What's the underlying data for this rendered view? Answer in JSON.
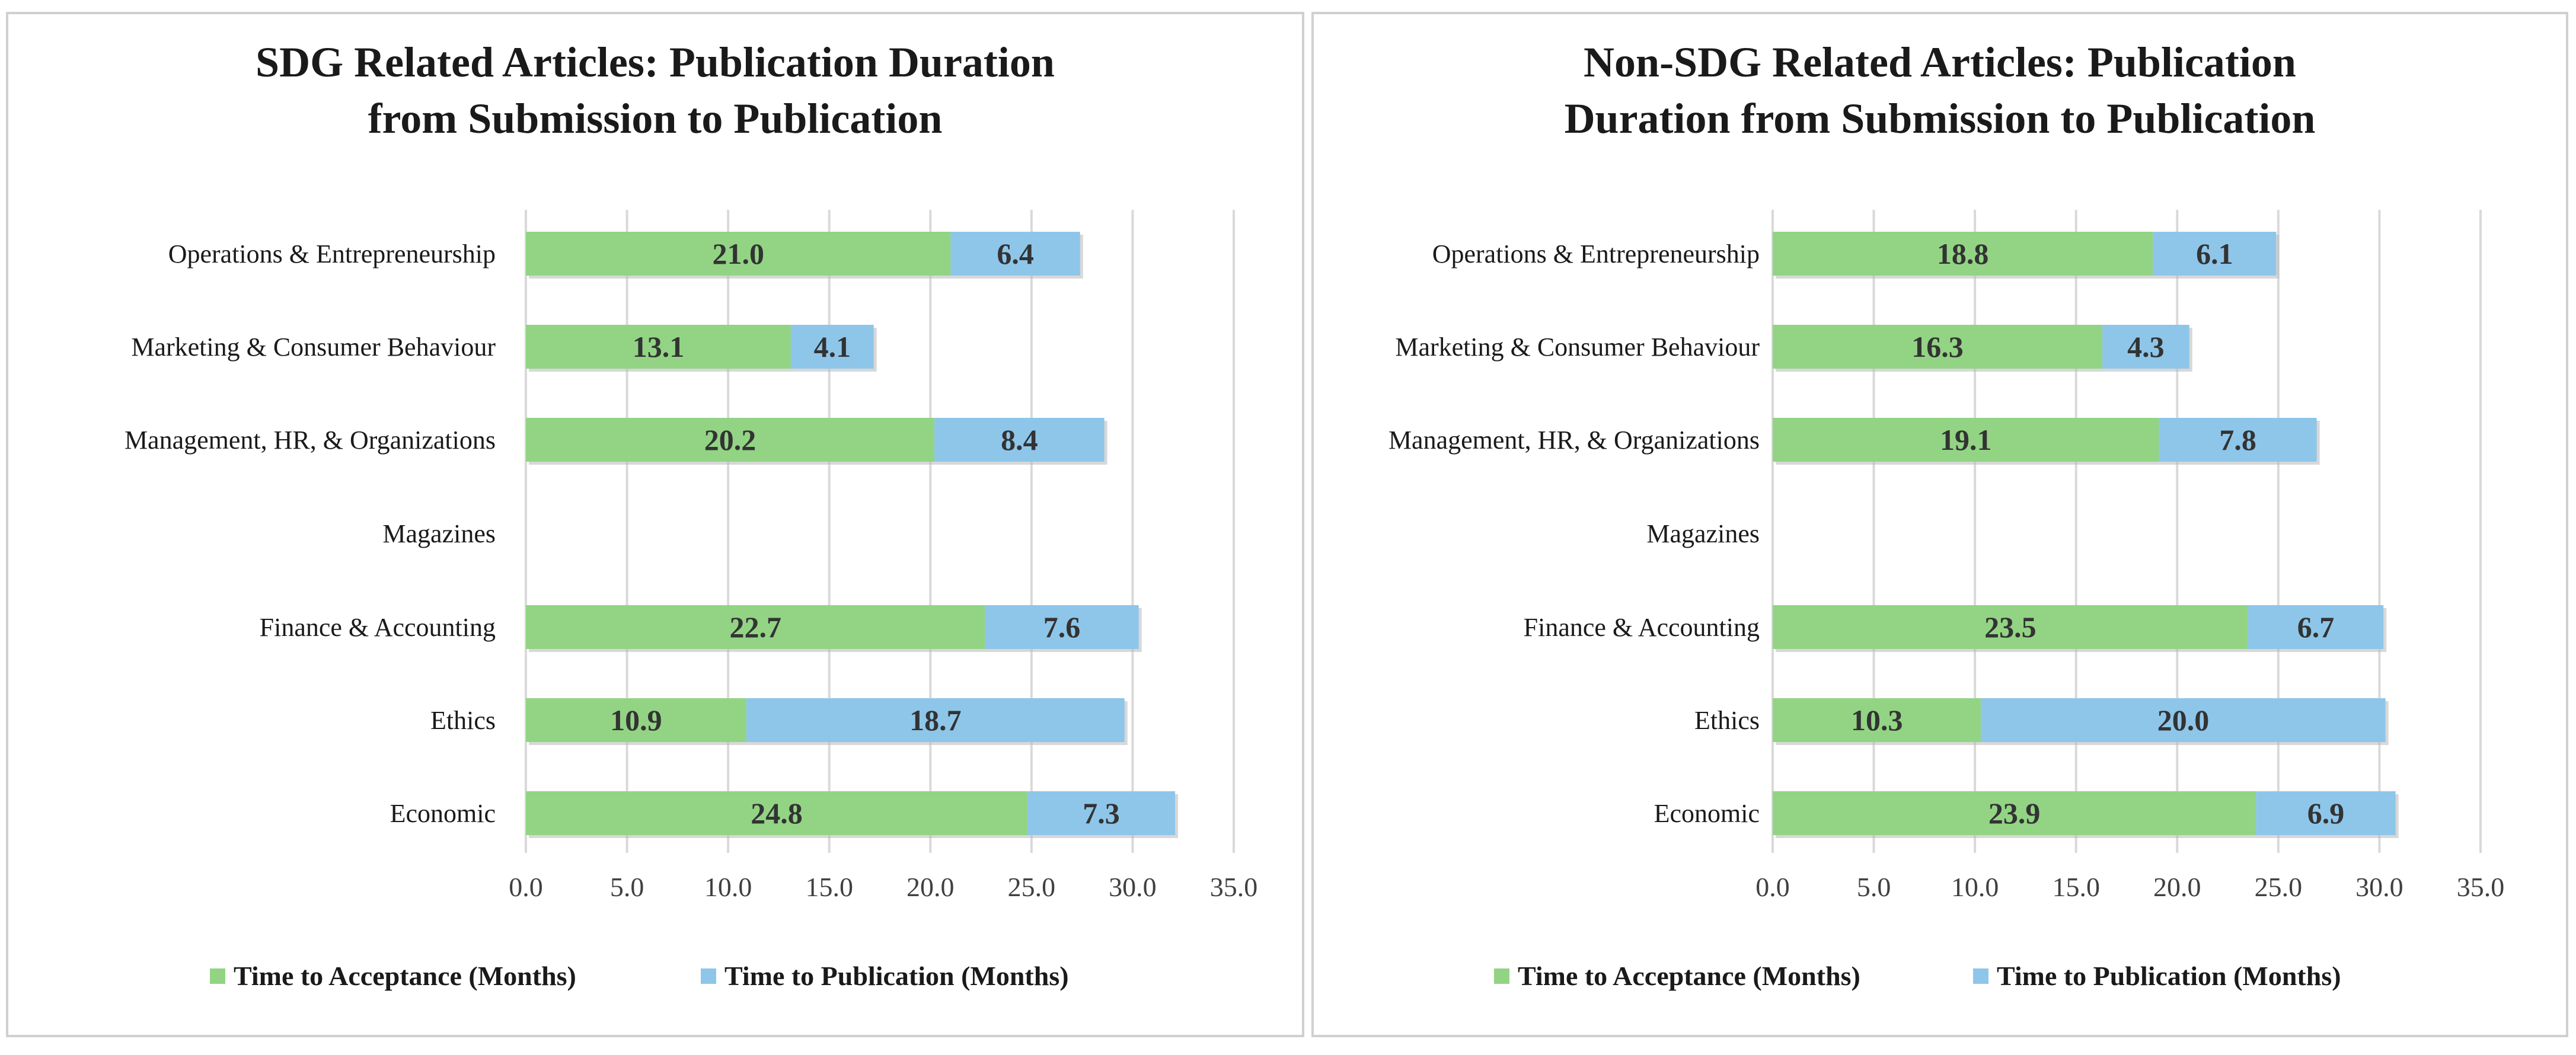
{
  "chart_data": [
    {
      "type": "bar",
      "orientation": "horizontal",
      "stacked": true,
      "title": "SDG Related Articles: Publication Duration from Submission to Publication",
      "title_lines": [
        "SDG Related Articles: Publication Duration",
        "from Submission to Publication"
      ],
      "categories": [
        "Operations & Entrepreneurship",
        "Marketing & Consumer Behaviour",
        "Management, HR, & Organizations",
        "Magazines",
        "Finance & Accounting",
        "Ethics",
        "Economic"
      ],
      "series": [
        {
          "name": "Time to Acceptance (Months)",
          "color": "#92d484",
          "values": [
            21.0,
            13.1,
            20.2,
            null,
            22.7,
            10.9,
            24.8
          ],
          "labels": [
            "21.0",
            "13.1",
            "20.2",
            "",
            "22.7",
            "10.9",
            "24.8"
          ]
        },
        {
          "name": "Time to Publication (Months)",
          "color": "#8ec6ea",
          "values": [
            6.4,
            4.1,
            8.4,
            null,
            7.6,
            18.7,
            7.3
          ],
          "labels": [
            "6.4",
            "4.1",
            "8.4",
            "",
            "7.6",
            "18.7",
            "7.3"
          ]
        }
      ],
      "xlim": [
        0,
        35
      ],
      "xticks": [
        "0.0",
        "5.0",
        "10.0",
        "15.0",
        "20.0",
        "25.0",
        "30.0",
        "35.0"
      ],
      "xlabel": "",
      "ylabel": "",
      "grid": true,
      "legend": "bottom"
    },
    {
      "type": "bar",
      "orientation": "horizontal",
      "stacked": true,
      "title": "Non-SDG Related Articles: Publication Duration from Submission to Publication",
      "title_lines": [
        "Non-SDG Related Articles: Publication",
        "Duration from Submission to Publication"
      ],
      "categories": [
        "Operations & Entrepreneurship",
        "Marketing & Consumer Behaviour",
        "Management, HR, & Organizations",
        "Magazines",
        "Finance & Accounting",
        "Ethics",
        "Economic"
      ],
      "series": [
        {
          "name": "Time to Acceptance (Months)",
          "color": "#92d484",
          "values": [
            18.8,
            16.3,
            19.1,
            null,
            23.5,
            10.3,
            23.9
          ],
          "labels": [
            "18.8",
            "16.3",
            "19.1",
            "",
            "23.5",
            "10.3",
            "23.9"
          ]
        },
        {
          "name": "Time to Publication (Months)",
          "color": "#8ec6ea",
          "values": [
            6.1,
            4.3,
            7.8,
            null,
            6.7,
            20.0,
            6.9
          ],
          "labels": [
            "6.1",
            "4.3",
            "7.8",
            "",
            "6.7",
            "20.0",
            "6.9"
          ]
        }
      ],
      "xlim": [
        0,
        35
      ],
      "xticks": [
        "0.0",
        "5.0",
        "10.0",
        "15.0",
        "20.0",
        "25.0",
        "30.0",
        "35.0"
      ],
      "xlabel": "",
      "ylabel": "",
      "grid": true,
      "legend": "bottom"
    }
  ]
}
